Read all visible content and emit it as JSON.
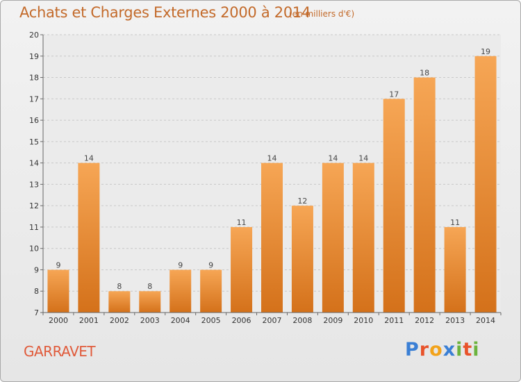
{
  "title": "Achats et Charges Externes 2000 à 2014",
  "subtitle": "(en milliers d'€)",
  "commune": "GARRAVET",
  "logo": {
    "text": "Proxiti",
    "letters": [
      {
        "ch": "P",
        "color": "#3a7fd5"
      },
      {
        "ch": "r",
        "color": "#e8532b"
      },
      {
        "ch": "o",
        "color": "#f2a31b"
      },
      {
        "ch": "x",
        "color": "#3a7fd5"
      },
      {
        "ch": "i",
        "color": "#6cb33e"
      },
      {
        "ch": "t",
        "color": "#e8532b"
      },
      {
        "ch": "i",
        "color": "#6cb33e"
      }
    ]
  },
  "colors": {
    "bar_top": "#f6a655",
    "bar_bottom": "#d4711a",
    "grid": "#c8c8c8",
    "title": "#c36a2a"
  },
  "chart_data": {
    "type": "bar",
    "title": "Achats et Charges Externes 2000 à 2014",
    "ylabel": "en milliers d'€",
    "categories": [
      "2000",
      "2001",
      "2002",
      "2003",
      "2004",
      "2005",
      "2006",
      "2007",
      "2008",
      "2009",
      "2010",
      "2011",
      "2012",
      "2013",
      "2014"
    ],
    "values": [
      9,
      14,
      8,
      8,
      9,
      9,
      11,
      14,
      12,
      14,
      14,
      17,
      18,
      11,
      19
    ],
    "ylim": [
      7,
      20
    ],
    "yticks": [
      7,
      8,
      9,
      10,
      11,
      12,
      13,
      14,
      15,
      16,
      17,
      18,
      19,
      20
    ],
    "grid": true
  }
}
